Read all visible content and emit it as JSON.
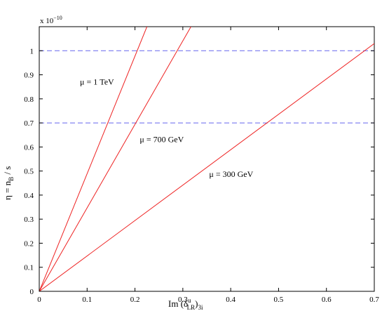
{
  "chart_data": {
    "type": "line",
    "multiplier_text": "x 10",
    "multiplier_exp": "−10",
    "xlabel": {
      "prefix": "Im (δ",
      "sup": "u",
      "sub": "LR",
      "close": ")",
      "tail": "3i"
    },
    "ylabel": {
      "eta": "η = n",
      "sub": "B",
      "tail": " / s"
    },
    "xlim": [
      0,
      0.7
    ],
    "ylim": [
      0,
      1.1
    ],
    "x_ticks": [
      0,
      0.1,
      0.2,
      0.3,
      0.4,
      0.5,
      0.6,
      0.7
    ],
    "x_tick_labels": [
      "0",
      "0.1",
      "0.2",
      "0.3",
      "0.4",
      "0.5",
      "0.6",
      "0.7"
    ],
    "y_ticks": [
      0,
      0.1,
      0.2,
      0.3,
      0.4,
      0.5,
      0.6,
      0.7,
      0.8,
      0.9,
      1.0
    ],
    "y_tick_labels": [
      "0",
      "0.1",
      "0.2",
      "0.3",
      "0.4",
      "0.5",
      "0.6",
      "0.7",
      "0.8",
      "0.9",
      "1"
    ],
    "series": [
      {
        "label": "μ = 1 TeV",
        "color": "#ee2222",
        "x": [
          0,
          0.225
        ],
        "y": [
          0,
          1.1
        ]
      },
      {
        "label": "μ = 700 GeV",
        "color": "#ee2222",
        "x": [
          0,
          0.317
        ],
        "y": [
          0,
          1.1
        ]
      },
      {
        "label": "μ = 300 GeV",
        "color": "#ee2222",
        "x": [
          0,
          0.7
        ],
        "y": [
          0,
          1.03
        ]
      }
    ],
    "annotations": [
      {
        "text": "μ = 1 TeV",
        "x": 0.085,
        "y": 0.86
      },
      {
        "text": "μ = 700 GeV",
        "x": 0.21,
        "y": 0.62
      },
      {
        "text": "μ = 300 GeV",
        "x": 0.355,
        "y": 0.475
      }
    ],
    "reference_lines": [
      {
        "y": 1.0,
        "color": "#6666ee",
        "style": "dashed"
      },
      {
        "y": 0.7,
        "color": "#6666ee",
        "style": "dashed"
      }
    ],
    "grid": false
  }
}
